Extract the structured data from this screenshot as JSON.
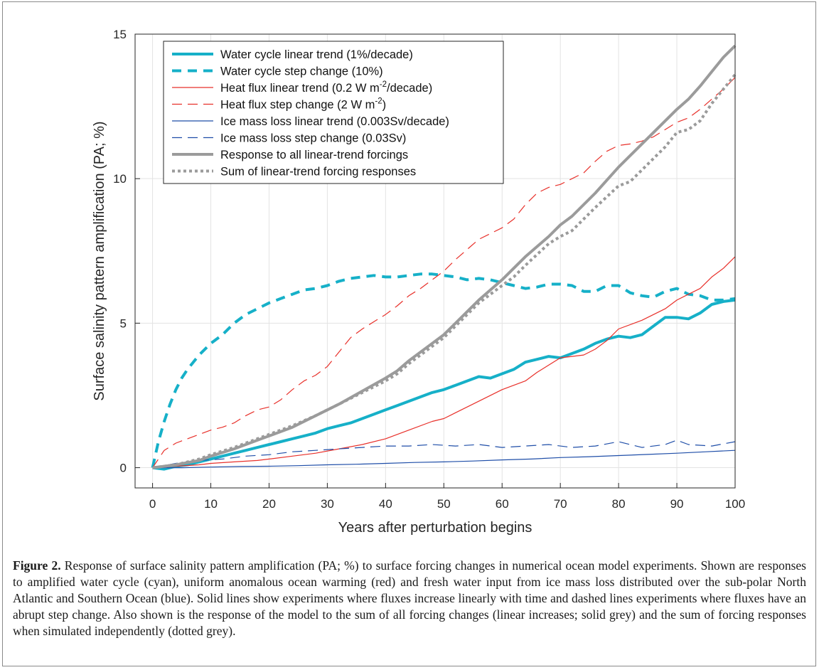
{
  "chart_data": {
    "type": "line",
    "xlabel": "Years after perturbation begins",
    "ylabel": "Surface salinity pattern amplification (PA; %)",
    "xlim": [
      -3,
      100
    ],
    "ylim": [
      -0.7,
      15
    ],
    "xticks": [
      0,
      10,
      20,
      30,
      40,
      50,
      60,
      70,
      80,
      90,
      100
    ],
    "yticks": [
      0,
      5,
      10,
      15
    ],
    "grid": true,
    "legend_position": "top-left",
    "series": [
      {
        "name": "Water cycle linear trend (1%/decade)",
        "color": "#16b0c8",
        "width": 4,
        "dash": "solid",
        "x": [
          0,
          2,
          4,
          6,
          8,
          10,
          12,
          14,
          16,
          18,
          20,
          22,
          24,
          26,
          28,
          30,
          32,
          34,
          36,
          38,
          40,
          42,
          44,
          46,
          48,
          50,
          52,
          54,
          56,
          58,
          60,
          62,
          64,
          66,
          68,
          70,
          72,
          74,
          76,
          78,
          80,
          82,
          84,
          86,
          88,
          90,
          92,
          94,
          96,
          98,
          100
        ],
        "y": [
          0,
          -0.05,
          0.05,
          0.1,
          0.2,
          0.3,
          0.4,
          0.5,
          0.6,
          0.7,
          0.8,
          0.9,
          1.0,
          1.1,
          1.2,
          1.35,
          1.45,
          1.55,
          1.7,
          1.85,
          2.0,
          2.15,
          2.3,
          2.45,
          2.6,
          2.7,
          2.85,
          3.0,
          3.15,
          3.1,
          3.25,
          3.4,
          3.65,
          3.75,
          3.85,
          3.8,
          3.95,
          4.1,
          4.3,
          4.45,
          4.55,
          4.5,
          4.6,
          4.9,
          5.2,
          5.2,
          5.15,
          5.35,
          5.65,
          5.75,
          5.8
        ]
      },
      {
        "name": "Water cycle step change (10%)",
        "color": "#16b0c8",
        "width": 4,
        "dash": "13 9",
        "x": [
          0,
          1,
          2,
          3,
          4,
          5,
          6,
          8,
          10,
          12,
          14,
          16,
          18,
          20,
          22,
          24,
          26,
          28,
          30,
          32,
          34,
          36,
          38,
          40,
          42,
          44,
          46,
          48,
          50,
          52,
          54,
          56,
          58,
          60,
          62,
          64,
          66,
          68,
          70,
          72,
          74,
          76,
          78,
          80,
          82,
          84,
          86,
          88,
          90,
          92,
          94,
          96,
          98,
          100
        ],
        "y": [
          0,
          0.9,
          1.6,
          2.2,
          2.7,
          3.1,
          3.4,
          3.9,
          4.3,
          4.6,
          5.0,
          5.3,
          5.5,
          5.7,
          5.85,
          6.0,
          6.15,
          6.2,
          6.3,
          6.45,
          6.55,
          6.6,
          6.65,
          6.6,
          6.6,
          6.65,
          6.7,
          6.7,
          6.65,
          6.6,
          6.5,
          6.55,
          6.5,
          6.4,
          6.3,
          6.2,
          6.25,
          6.35,
          6.35,
          6.3,
          6.1,
          6.1,
          6.3,
          6.3,
          6.05,
          5.95,
          5.9,
          6.1,
          6.2,
          6.0,
          5.95,
          5.8,
          5.8,
          5.85
        ]
      },
      {
        "name": "Heat flux linear trend (0.2 W m-2/decade)",
        "color": "#e8302a",
        "width": 1.2,
        "dash": "solid",
        "x": [
          0,
          4,
          8,
          10,
          14,
          18,
          20,
          24,
          28,
          32,
          36,
          40,
          44,
          48,
          50,
          52,
          56,
          60,
          64,
          66,
          70,
          74,
          76,
          78,
          80,
          84,
          88,
          90,
          92,
          94,
          96,
          98,
          100
        ],
        "y": [
          0,
          0.05,
          0.1,
          0.15,
          0.2,
          0.25,
          0.3,
          0.4,
          0.5,
          0.65,
          0.8,
          1.0,
          1.3,
          1.6,
          1.7,
          1.9,
          2.3,
          2.7,
          3.0,
          3.3,
          3.8,
          3.9,
          4.1,
          4.4,
          4.8,
          5.1,
          5.5,
          5.8,
          6.0,
          6.2,
          6.6,
          6.9,
          7.3
        ]
      },
      {
        "name": "Heat flux step change (2 W m-2)",
        "color": "#e8302a",
        "width": 1.2,
        "dash": "14 8",
        "x": [
          0,
          2,
          4,
          6,
          8,
          10,
          12,
          14,
          16,
          18,
          20,
          22,
          24,
          26,
          28,
          30,
          32,
          34,
          36,
          38,
          40,
          42,
          44,
          46,
          48,
          50,
          52,
          54,
          56,
          58,
          60,
          62,
          64,
          66,
          68,
          70,
          72,
          74,
          76,
          78,
          80,
          82,
          84,
          86,
          88,
          90,
          92,
          94,
          96,
          98,
          100
        ],
        "y": [
          0,
          0.6,
          0.85,
          1.0,
          1.15,
          1.3,
          1.4,
          1.55,
          1.8,
          2.0,
          2.1,
          2.35,
          2.7,
          3.0,
          3.2,
          3.5,
          4.0,
          4.5,
          4.8,
          5.05,
          5.3,
          5.6,
          5.95,
          6.2,
          6.5,
          6.8,
          7.2,
          7.55,
          7.9,
          8.1,
          8.3,
          8.6,
          9.1,
          9.5,
          9.7,
          9.8,
          10.0,
          10.2,
          10.6,
          10.95,
          11.15,
          11.2,
          11.3,
          11.45,
          11.7,
          11.95,
          12.1,
          12.4,
          12.75,
          13.1,
          13.5
        ]
      },
      {
        "name": "Ice mass loss linear trend (0.003Sv/decade)",
        "color": "#1f4ea8",
        "width": 1.2,
        "dash": "solid",
        "x": [
          0,
          5,
          10,
          15,
          20,
          25,
          30,
          35,
          40,
          45,
          50,
          55,
          60,
          65,
          70,
          75,
          80,
          85,
          90,
          95,
          100
        ],
        "y": [
          0,
          0.0,
          0.02,
          0.04,
          0.05,
          0.07,
          0.1,
          0.12,
          0.15,
          0.18,
          0.2,
          0.23,
          0.27,
          0.3,
          0.35,
          0.38,
          0.42,
          0.46,
          0.5,
          0.55,
          0.6
        ]
      },
      {
        "name": "Ice mass loss step change (0.03Sv)",
        "color": "#1f4ea8",
        "width": 1.2,
        "dash": "14 8",
        "x": [
          0,
          4,
          8,
          12,
          16,
          20,
          24,
          28,
          32,
          36,
          40,
          44,
          48,
          52,
          56,
          60,
          64,
          68,
          72,
          76,
          80,
          84,
          88,
          90,
          92,
          96,
          100
        ],
        "y": [
          0,
          0.15,
          0.25,
          0.3,
          0.4,
          0.45,
          0.55,
          0.6,
          0.65,
          0.7,
          0.75,
          0.75,
          0.8,
          0.75,
          0.8,
          0.7,
          0.75,
          0.8,
          0.7,
          0.75,
          0.9,
          0.7,
          0.8,
          0.95,
          0.8,
          0.75,
          0.9
        ]
      },
      {
        "name": "Response to all linear-trend forcings",
        "color": "#9b9b9b",
        "width": 4,
        "dash": "solid",
        "x": [
          0,
          4,
          8,
          10,
          14,
          18,
          20,
          24,
          28,
          32,
          36,
          40,
          42,
          44,
          48,
          50,
          52,
          56,
          60,
          62,
          64,
          68,
          70,
          72,
          76,
          80,
          84,
          88,
          90,
          92,
          94,
          96,
          98,
          100
        ],
        "y": [
          0,
          0.1,
          0.25,
          0.4,
          0.65,
          0.95,
          1.1,
          1.4,
          1.8,
          2.2,
          2.65,
          3.1,
          3.35,
          3.7,
          4.3,
          4.6,
          5.0,
          5.8,
          6.5,
          6.9,
          7.3,
          8.0,
          8.4,
          8.7,
          9.5,
          10.4,
          11.2,
          12.0,
          12.4,
          12.75,
          13.2,
          13.7,
          14.2,
          14.6
        ]
      },
      {
        "name": "Sum of linear-trend forcing responses",
        "color": "#9b9b9b",
        "width": 4,
        "dash": "4 4",
        "x": [
          0,
          4,
          8,
          10,
          14,
          18,
          20,
          24,
          28,
          32,
          36,
          40,
          42,
          44,
          48,
          50,
          52,
          56,
          60,
          62,
          64,
          68,
          70,
          72,
          76,
          80,
          82,
          84,
          88,
          90,
          92,
          94,
          96,
          98,
          100
        ],
        "y": [
          0,
          0.1,
          0.3,
          0.45,
          0.7,
          1.0,
          1.15,
          1.45,
          1.8,
          2.2,
          2.6,
          3.0,
          3.25,
          3.6,
          4.2,
          4.5,
          4.9,
          5.7,
          6.3,
          6.6,
          7.0,
          7.75,
          8.0,
          8.2,
          9.0,
          9.75,
          9.9,
          10.3,
          11.1,
          11.6,
          11.7,
          12.0,
          12.6,
          13.1,
          13.6
        ]
      }
    ]
  },
  "legend": {
    "items": [
      {
        "text": "Water cycle linear trend (1%/decade)"
      },
      {
        "text": "Water cycle step change (10%)"
      },
      {
        "pre": "Heat flux linear trend (0.2 W m",
        "sup": "-2",
        "post": "/decade)"
      },
      {
        "pre": "Heat flux step change (2 W m",
        "sup": "-2",
        "post": ")"
      },
      {
        "text": "Ice mass loss linear trend (0.003Sv/decade)"
      },
      {
        "text": "Ice mass loss step change (0.03Sv)"
      },
      {
        "text": "Response to all linear-trend forcings"
      },
      {
        "text": "Sum of linear-trend forcing responses"
      }
    ]
  },
  "caption": {
    "label": "Figure 2.",
    "text": "Response of surface salinity pattern amplification (PA; %) to surface forcing changes in numerical ocean model experiments. Shown are responses to amplified water cycle (cyan), uniform anomalous ocean warming (red) and fresh water input from ice mass loss distributed over the sub-polar North Atlantic and Southern Ocean (blue). Solid lines show experiments where fluxes increase linearly with time and dashed lines experiments where fluxes have an abrupt step change. Also shown is the response of the model to the sum of all forcing changes (linear increases; solid grey) and the sum of forcing responses when simulated independently (dotted grey)."
  }
}
